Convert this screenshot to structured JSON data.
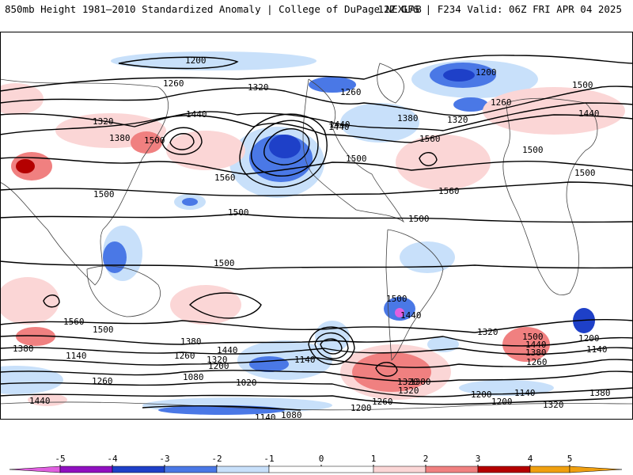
{
  "header": {
    "title_left": "850mb Height 1981–2010 Standardized Anomaly | College of DuPage NEXLAB",
    "title_right": "12Z GFS | F234 Valid: 06Z FRI APR 04 2025"
  },
  "colors": {
    "neg5": "#e060e0",
    "neg4": "#9010c0",
    "neg3": "#1e40c8",
    "neg2": "#4a78e6",
    "neg1": "#c8e0fa",
    "pos1": "#fbd6d6",
    "pos2": "#f08080",
    "pos3": "#d84a4a",
    "pos4": "#b40000",
    "pos5": "#f0a010",
    "contour": "#000000",
    "land": "#444444"
  },
  "colorbar": {
    "ticks": [
      "-5",
      "-4",
      "-3",
      "-2",
      "-1",
      "0",
      "1",
      "2",
      "3",
      "4",
      "5"
    ]
  },
  "contour_labels": [
    "1200",
    "1260",
    "1320",
    "1380",
    "1440",
    "1500",
    "1560",
    "1200",
    "1260",
    "1320",
    "1380",
    "1440",
    "1500",
    "1560",
    "1500",
    "1500",
    "1500",
    "1500",
    "1440",
    "1380",
    "1320",
    "1260",
    "1200",
    "1140",
    "1080",
    "1020",
    "1140",
    "1260",
    "1320",
    "1200",
    "1140",
    "1080",
    "1440",
    "1380",
    "1560",
    "1500",
    "1500",
    "1440",
    "1380",
    "1320",
    "1260",
    "1200",
    "1140",
    "1440",
    "1500",
    "1500",
    "1500",
    "1560",
    "1320",
    "1260",
    "1200",
    "1380",
    "1320",
    "1440",
    "1500",
    "1200",
    "1140",
    "1260",
    "1380",
    "1320",
    "1440"
  ]
}
